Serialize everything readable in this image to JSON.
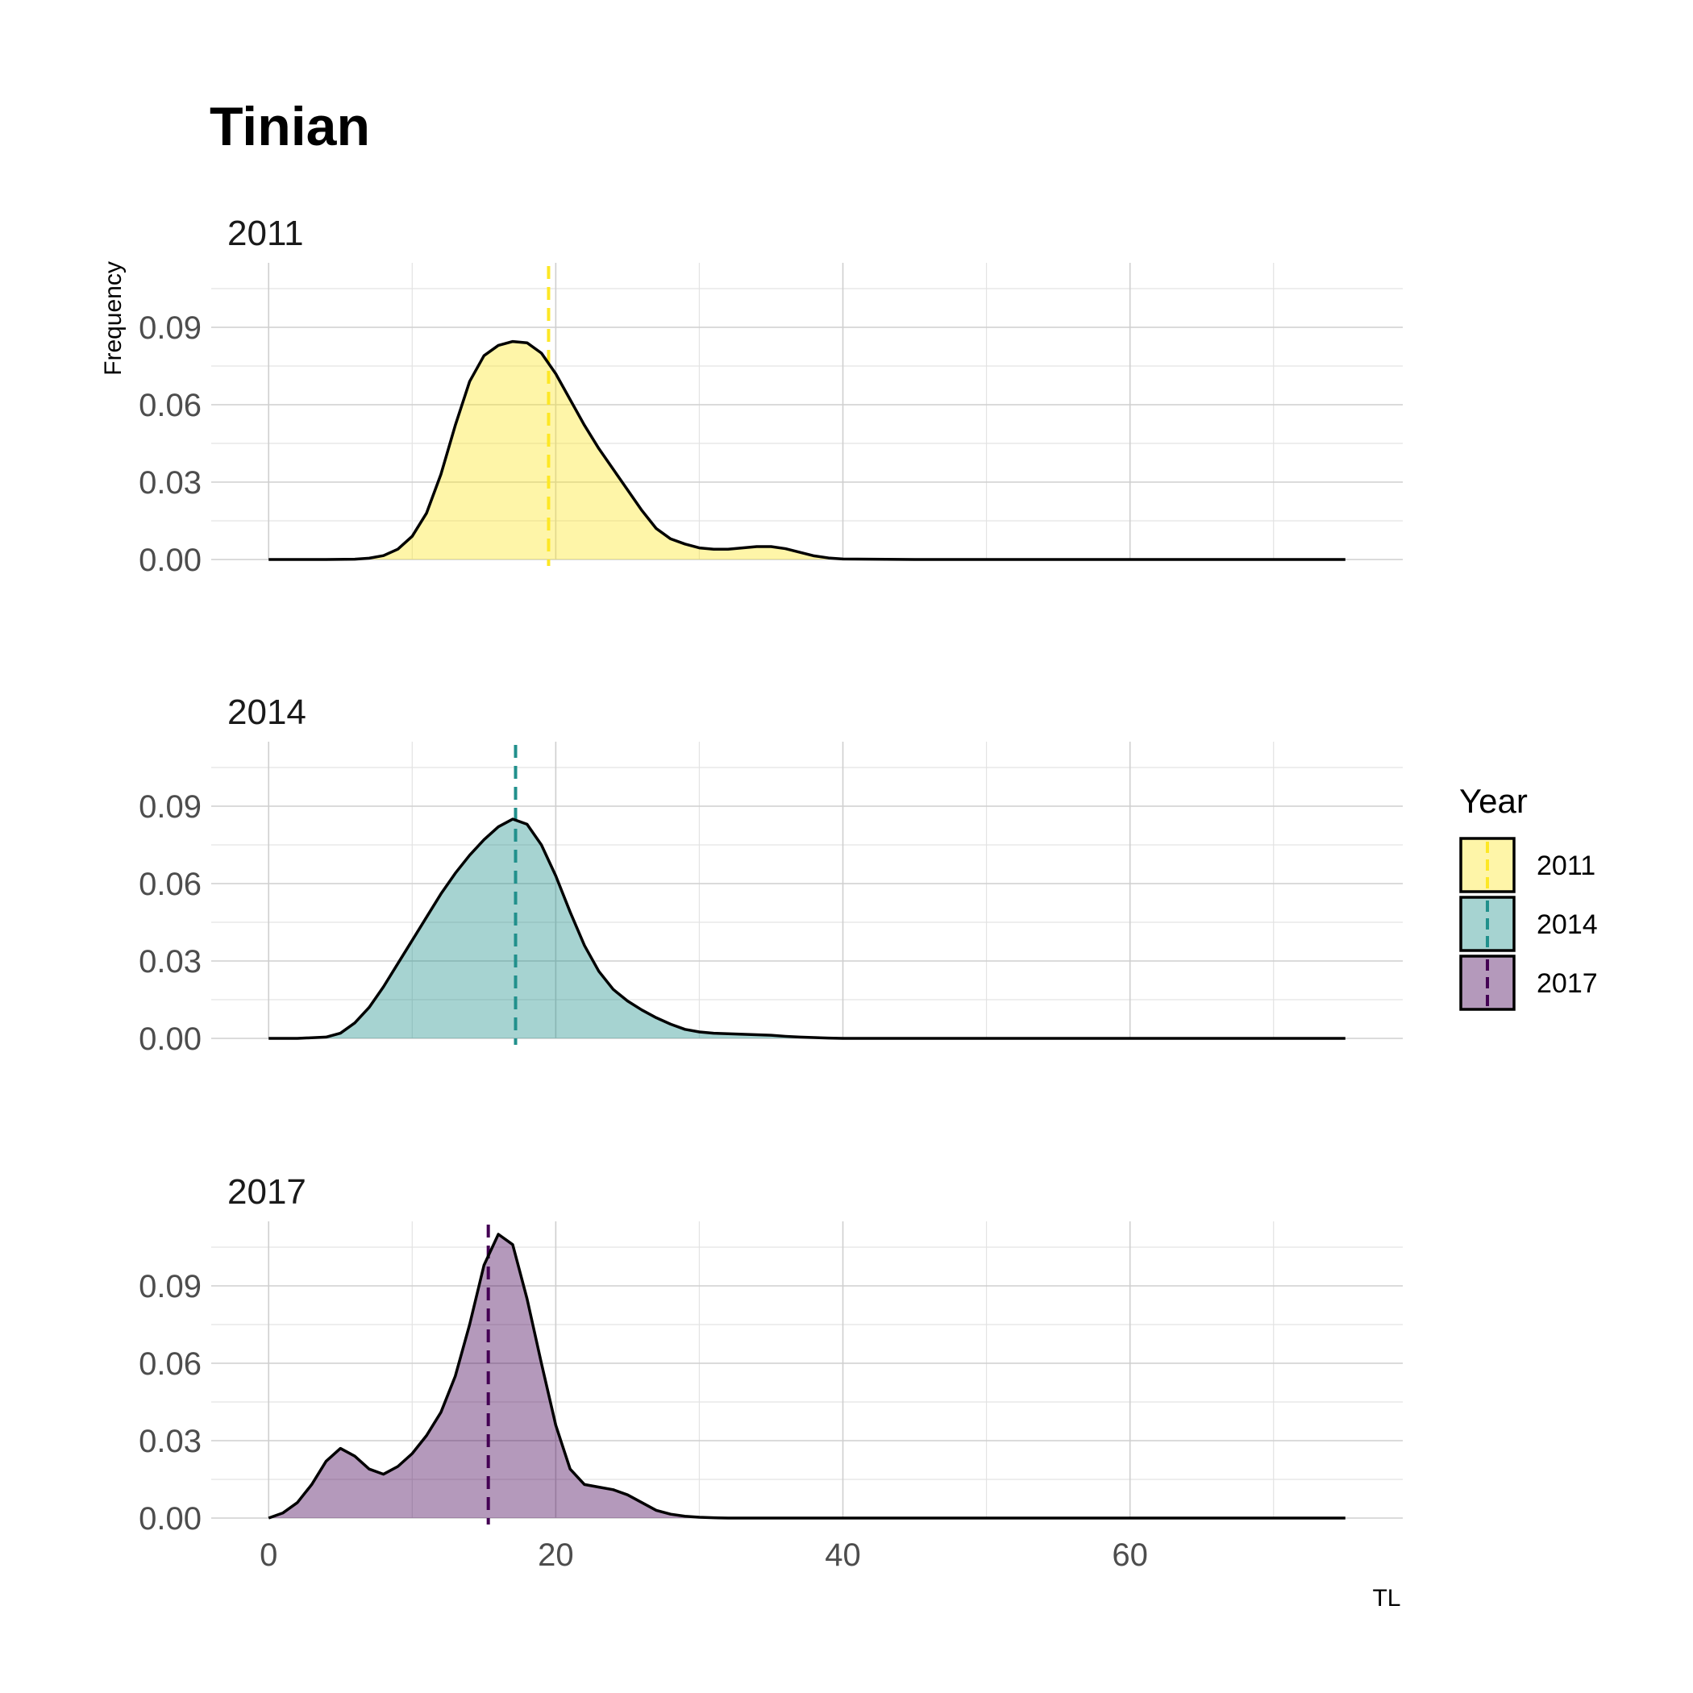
{
  "chart_data": {
    "type": "area",
    "subtype": "density-facets",
    "title": "Tinian",
    "xlabel": "TL",
    "ylabel": "Frequency",
    "xlim": [
      -4,
      79
    ],
    "ylim": [
      0,
      0.115
    ],
    "x_ticks": [
      0,
      20,
      40,
      60
    ],
    "y_ticks": [
      0.0,
      0.03,
      0.06,
      0.09
    ],
    "y_tick_labels": [
      "0.00",
      "0.03",
      "0.06",
      "0.09"
    ],
    "grid": true,
    "legend": {
      "title": "Year",
      "position": "right",
      "entries": [
        "2011",
        "2014",
        "2017"
      ]
    },
    "series": [
      {
        "name": "2011",
        "fill": "#fde725",
        "line_color": "#fde725",
        "mean_line_x": 19.5,
        "x": [
          0,
          2,
          4,
          6,
          7,
          8,
          9,
          10,
          11,
          12,
          13,
          14,
          15,
          16,
          17,
          18,
          19,
          20,
          21,
          22,
          23,
          24,
          25,
          26,
          27,
          28,
          29,
          30,
          31,
          32,
          33,
          34,
          35,
          36,
          37,
          38,
          39,
          40,
          45,
          50,
          60,
          70,
          75
        ],
        "values": [
          0,
          0,
          0,
          0.0001,
          0.0005,
          0.0015,
          0.004,
          0.009,
          0.018,
          0.033,
          0.052,
          0.069,
          0.079,
          0.083,
          0.0845,
          0.084,
          0.08,
          0.072,
          0.062,
          0.052,
          0.043,
          0.035,
          0.027,
          0.019,
          0.012,
          0.008,
          0.006,
          0.0045,
          0.004,
          0.004,
          0.0045,
          0.005,
          0.005,
          0.0042,
          0.0028,
          0.0014,
          0.0006,
          0.0002,
          0,
          0,
          0,
          0,
          0
        ]
      },
      {
        "name": "2014",
        "fill": "#21908c",
        "line_color": "#21908c",
        "mean_line_x": 17.2,
        "x": [
          0,
          2,
          4,
          5,
          6,
          7,
          8,
          9,
          10,
          11,
          12,
          13,
          14,
          15,
          16,
          17,
          18,
          19,
          20,
          21,
          22,
          23,
          24,
          25,
          26,
          27,
          28,
          29,
          30,
          31,
          32,
          33,
          34,
          35,
          36,
          37,
          38,
          39,
          40,
          45,
          50,
          60,
          70,
          75
        ],
        "values": [
          0,
          0,
          0.0005,
          0.002,
          0.006,
          0.012,
          0.02,
          0.029,
          0.038,
          0.047,
          0.056,
          0.064,
          0.071,
          0.077,
          0.082,
          0.085,
          0.083,
          0.075,
          0.063,
          0.049,
          0.036,
          0.026,
          0.019,
          0.0145,
          0.011,
          0.008,
          0.0055,
          0.0035,
          0.0025,
          0.002,
          0.0018,
          0.0016,
          0.0014,
          0.0012,
          0.0008,
          0.0005,
          0.0003,
          0.0001,
          0,
          0,
          0,
          0,
          0,
          0
        ]
      },
      {
        "name": "2017",
        "fill": "#440154",
        "line_color": "#440154",
        "mean_line_x": 15.3,
        "x": [
          0,
          1,
          2,
          3,
          4,
          5,
          6,
          7,
          8,
          9,
          10,
          11,
          12,
          13,
          14,
          15,
          16,
          17,
          18,
          19,
          20,
          21,
          22,
          23,
          24,
          25,
          26,
          27,
          28,
          29,
          30,
          31,
          32,
          35,
          40,
          50,
          60,
          70,
          75
        ],
        "values": [
          0,
          0.002,
          0.006,
          0.013,
          0.022,
          0.027,
          0.024,
          0.019,
          0.017,
          0.02,
          0.025,
          0.032,
          0.041,
          0.055,
          0.075,
          0.098,
          0.11,
          0.106,
          0.085,
          0.06,
          0.036,
          0.019,
          0.013,
          0.012,
          0.011,
          0.009,
          0.006,
          0.003,
          0.0015,
          0.0007,
          0.0003,
          0.0001,
          0,
          0,
          0,
          0,
          0,
          0,
          0
        ]
      }
    ]
  }
}
